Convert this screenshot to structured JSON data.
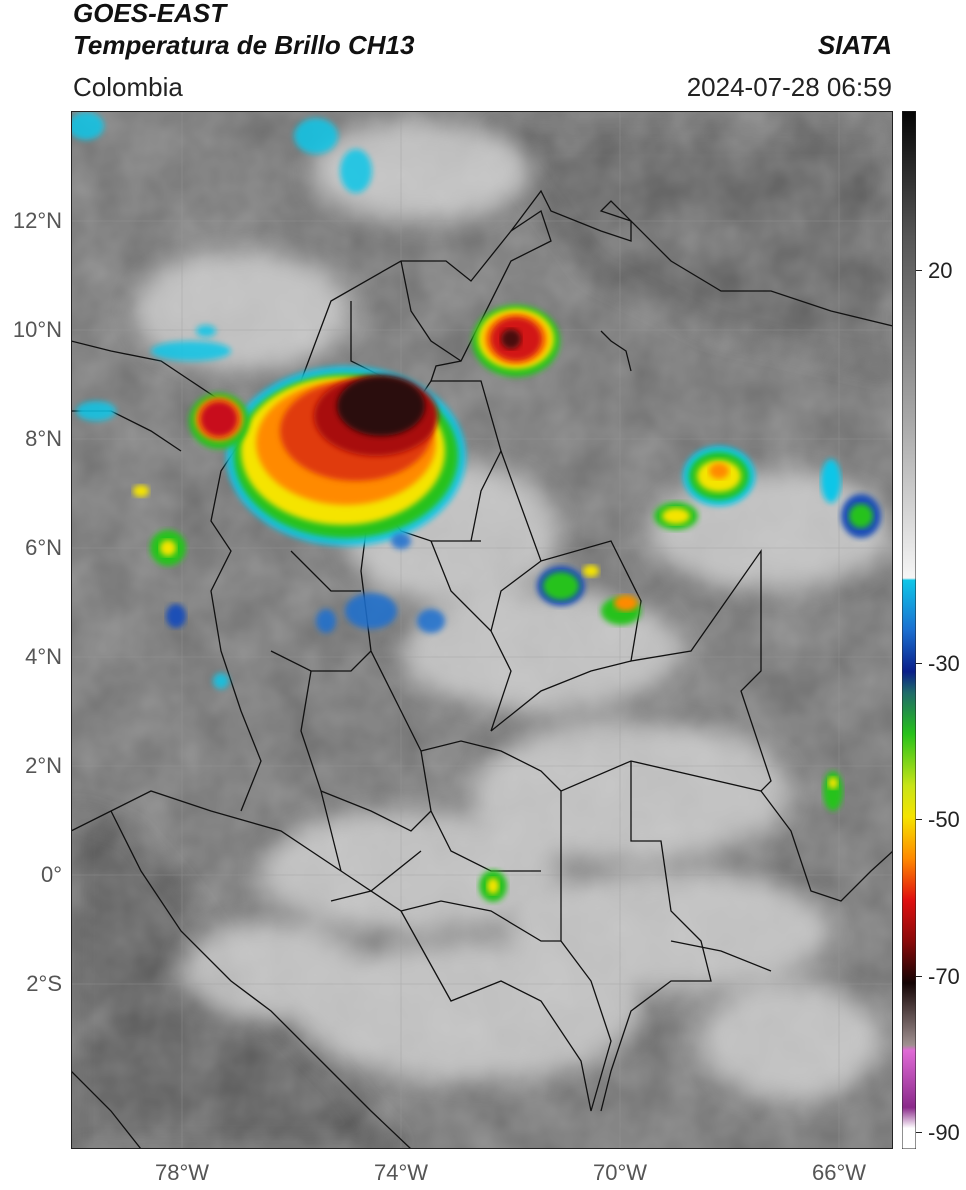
{
  "header": {
    "satellite": "GOES-EAST",
    "product": "Temperatura de Brillo CH13",
    "region": "Colombia",
    "agency": "SIATA",
    "datetime": "2024-07-28 06:59"
  },
  "map": {
    "lat_labels": [
      "12°N",
      "10°N",
      "8°N",
      "6°N",
      "4°N",
      "2°N",
      "0°",
      "2°S"
    ],
    "lon_labels": [
      "78°W",
      "74°W",
      "70°W",
      "66°W"
    ]
  },
  "colorbar": {
    "labels": [
      "20",
      "-30",
      "-50",
      "-70",
      "-90"
    ]
  },
  "colors": {
    "cold_top": "#1a1a1a",
    "red": "#c8101a",
    "orange": "#ff8a00",
    "yellow": "#f5e400",
    "green": "#27c21a",
    "blue": "#1b4fb6",
    "cyan": "#0fc6e8",
    "magenta": "#c43bbd"
  }
}
